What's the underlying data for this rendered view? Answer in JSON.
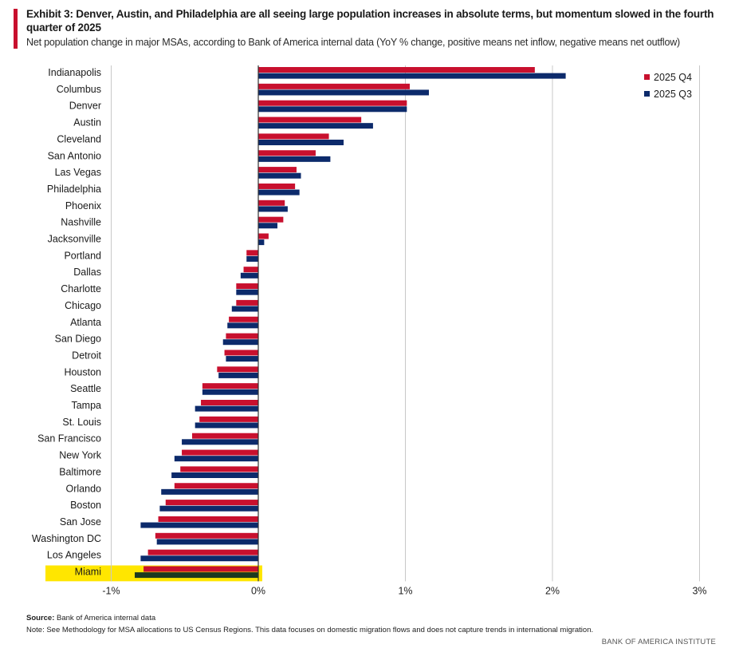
{
  "header": {
    "title": "Exhibit 3: Denver, Austin, and Philadelphia are all seeing large population increases in absolute terms, but momentum slowed in the fourth quarter of 2025",
    "subtitle": "Net population change in major MSAs, according to Bank of America internal data (YoY % change, positive means net inflow, negative means net outflow)"
  },
  "footer": {
    "source_label": "Source:",
    "source_text": "Bank of America internal data",
    "note": "Note: See Methodology for MSA allocations to US Census Regions. This data focuses on domestic migration flows and does not capture trends in international migration.",
    "brand": "BANK OF AMERICA INSTITUTE"
  },
  "colors": {
    "q4": "#c8102e",
    "q3": "#0c2a6b",
    "highlight": "#ffe600",
    "highlight_q3": "#1c3a1f",
    "grid": "#c8c8c8",
    "axis": "#333333"
  },
  "chart_data": {
    "type": "bar",
    "orientation": "horizontal",
    "xlim": [
      -1.5,
      3
    ],
    "xticks": [
      -1,
      0,
      1,
      2,
      3
    ],
    "xtick_labels": [
      "-1%",
      "0%",
      "1%",
      "2%",
      "3%"
    ],
    "legend_position": "top-right",
    "highlighted_category": "Miami",
    "categories": [
      "Indianapolis",
      "Columbus",
      "Denver",
      "Austin",
      "Cleveland",
      "San Antonio",
      "Las Vegas",
      "Philadelphia",
      "Phoenix",
      "Nashville",
      "Jacksonville",
      "Portland",
      "Dallas",
      "Charlotte",
      "Chicago",
      "Atlanta",
      "San Diego",
      "Detroit",
      "Houston",
      "Seattle",
      "Tampa",
      "St. Louis",
      "San Francisco",
      "New York",
      "Baltimore",
      "Orlando",
      "Boston",
      "San Jose",
      "Washington DC",
      "Los Angeles",
      "Miami"
    ],
    "series": [
      {
        "name": "2025 Q4",
        "values": [
          1.88,
          1.03,
          1.01,
          0.7,
          0.48,
          0.39,
          0.26,
          0.25,
          0.18,
          0.17,
          0.07,
          -0.08,
          -0.1,
          -0.15,
          -0.15,
          -0.2,
          -0.22,
          -0.23,
          -0.28,
          -0.38,
          -0.39,
          -0.4,
          -0.45,
          -0.52,
          -0.53,
          -0.57,
          -0.63,
          -0.68,
          -0.7,
          -0.75,
          -0.78
        ]
      },
      {
        "name": "2025 Q3",
        "values": [
          2.09,
          1.16,
          1.01,
          0.78,
          0.58,
          0.49,
          0.29,
          0.28,
          0.2,
          0.13,
          0.04,
          -0.08,
          -0.12,
          -0.15,
          -0.18,
          -0.21,
          -0.24,
          -0.22,
          -0.27,
          -0.38,
          -0.43,
          -0.43,
          -0.52,
          -0.57,
          -0.59,
          -0.66,
          -0.67,
          -0.8,
          -0.69,
          -0.8,
          -0.84
        ]
      }
    ]
  }
}
